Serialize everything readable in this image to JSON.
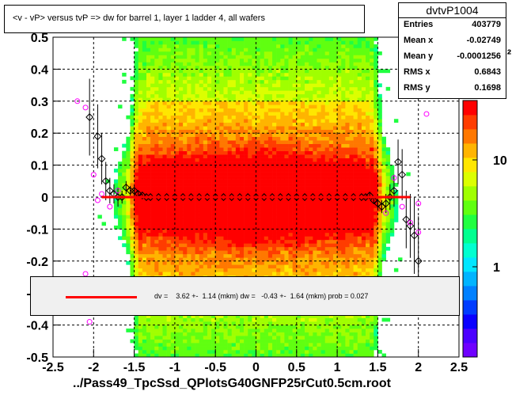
{
  "chart_data": {
    "type": "heatmap",
    "title": "<v - vP>       versus  tvP =>  dw for barrel 1, layer 1 ladder 4, all wafers",
    "xlabel": "../Pass49_TpcSsd_QPlotsG40GNFP25rCut0.5cm.root",
    "ylabel": "",
    "xlim": [
      -2.5,
      2.5
    ],
    "ylim": [
      -0.5,
      0.5
    ],
    "x_ticks": [
      "-2.5",
      "-2",
      "-1.5",
      "-1",
      "-0.5",
      "0",
      "0.5",
      "1",
      "1.5",
      "2",
      "2.5"
    ],
    "y_ticks": [
      "0.5",
      "0.4",
      "0.3",
      "0.2",
      "0.1",
      "0",
      "-0.1",
      "-0.2",
      "-0.3",
      "-0.4",
      "-0.5"
    ],
    "z_scale": "log",
    "z_ticks": [
      "1",
      "10",
      "10²"
    ],
    "palette": [
      "#6f00ff",
      "#4b00ff",
      "#0a00ff",
      "#003cff",
      "#0080ff",
      "#00b4ff",
      "#00e6ff",
      "#00ffd0",
      "#00ff90",
      "#20ff40",
      "#60ff10",
      "#a0ff00",
      "#dcff00",
      "#ffe600",
      "#ffb400",
      "#ff7800",
      "#ff3c00",
      "#ff0000"
    ],
    "grid": true,
    "stats": {
      "name": "dvtvP1004",
      "rows": [
        {
          "label": "Entries",
          "value": "403779"
        },
        {
          "label": "Mean x",
          "value": "-0.02749"
        },
        {
          "label": "Mean y",
          "value": "-0.0001256"
        },
        {
          "label": "RMS x",
          "value": "0.6843"
        },
        {
          "label": "RMS y",
          "value": "0.1698"
        }
      ]
    },
    "fit_text": "dv =    3.62 +-  1.14 (mkm) dw =   -0.43 +-  1.64 (mkm) prob = 0.027",
    "fit_color": "#ff0000",
    "profile_x": [
      -2.05,
      -1.95,
      -1.9,
      -1.85,
      -1.8,
      -1.75,
      -1.7,
      -1.65,
      -1.6,
      -1.55,
      -1.5,
      -1.45,
      -1.4,
      -1.35,
      -1.3,
      -1.2,
      -1.1,
      -1.0,
      -0.9,
      -0.8,
      -0.7,
      -0.6,
      -0.5,
      -0.4,
      -0.3,
      -0.2,
      -0.1,
      0.0,
      0.1,
      0.2,
      0.3,
      0.4,
      0.5,
      0.6,
      0.7,
      0.8,
      0.9,
      1.0,
      1.1,
      1.2,
      1.3,
      1.35,
      1.4,
      1.45,
      1.5,
      1.55,
      1.6,
      1.65,
      1.7,
      1.75,
      1.8,
      1.85,
      1.9,
      1.95,
      2.0
    ],
    "profile_y": [
      0.25,
      0.19,
      0.12,
      0.05,
      0.02,
      0.01,
      0.0,
      0.0,
      0.03,
      0.02,
      0.02,
      0.01,
      0.005,
      0.0,
      0.0,
      0.0,
      0.0,
      0.0,
      0.0,
      0.0,
      0.0,
      0.0,
      0.0,
      0.0,
      0.0,
      0.0,
      0.0,
      0.0,
      0.0,
      0.0,
      0.0,
      0.0,
      0.0,
      0.0,
      0.0,
      0.0,
      0.0,
      0.0,
      0.0,
      0.0,
      0.0,
      0.0,
      0.005,
      -0.01,
      -0.02,
      -0.03,
      -0.02,
      0.0,
      0.02,
      0.11,
      0.07,
      -0.07,
      -0.09,
      -0.12,
      -0.2
    ],
    "profile_err": [
      0.12,
      0.1,
      0.08,
      0.06,
      0.04,
      0.03,
      0.03,
      0.02,
      0.02,
      0.015,
      0.01,
      0.01,
      0.005,
      0.004,
      0.003,
      0.003,
      0.003,
      0.003,
      0.003,
      0.003,
      0.003,
      0.003,
      0.003,
      0.003,
      0.003,
      0.003,
      0.003,
      0.003,
      0.003,
      0.003,
      0.003,
      0.003,
      0.003,
      0.003,
      0.003,
      0.003,
      0.003,
      0.003,
      0.003,
      0.003,
      0.004,
      0.005,
      0.008,
      0.01,
      0.015,
      0.02,
      0.03,
      0.04,
      0.05,
      0.07,
      0.08,
      0.09,
      0.1,
      0.12,
      0.14
    ],
    "outliers_x": [
      -2.2,
      -2.1,
      -2.0,
      -1.95,
      -1.9,
      -1.8,
      -1.7,
      1.6,
      1.7,
      1.8,
      1.9,
      2.0,
      2.1,
      2.0,
      -2.1,
      -2.05
    ],
    "outliers_y": [
      0.3,
      0.28,
      0.07,
      -0.01,
      0.01,
      -0.03,
      0.02,
      -0.05,
      0.06,
      -0.03,
      -0.08,
      -0.11,
      0.26,
      -0.02,
      -0.24,
      -0.39
    ],
    "fit_line": {
      "x": [
        -1.9,
        1.9
      ],
      "y": [
        0.0,
        0.0
      ]
    }
  }
}
